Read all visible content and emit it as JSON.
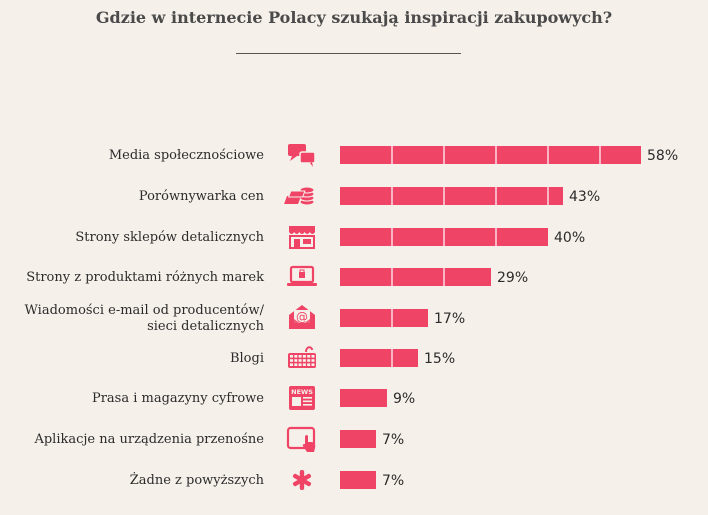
{
  "chart_data": {
    "type": "bar",
    "orientation": "horizontal",
    "title": "Gdzie w internecie Polacy szukają inspiracji zakupowych?",
    "categories": [
      [
        "Media społecznościowe"
      ],
      [
        "Porównywarka cen"
      ],
      [
        "Strony sklepów detalicznych"
      ],
      [
        "Strony z produktami różnych marek"
      ],
      [
        "Wiadomości e-mail od producentów/",
        "sieci detalicznych"
      ],
      [
        "Blogi"
      ],
      [
        "Prasa i magazyny cyfrowe"
      ],
      [
        "Aplikacje na urządzenia przenośne"
      ],
      [
        "Żadne z powyższych"
      ]
    ],
    "values": [
      58,
      43,
      40,
      29,
      17,
      15,
      9,
      7,
      7
    ],
    "value_labels": [
      "58%",
      "43%",
      "40%",
      "29%",
      "17%",
      "15%",
      "9%",
      "7%",
      "7%"
    ],
    "icons": [
      "chat-bubbles-icon",
      "coins-icon",
      "shop-icon",
      "laptop-bag-icon",
      "email-at-icon",
      "keyboard-icon",
      "newspaper-icon",
      "tablet-touch-icon",
      "asterisk-icon"
    ],
    "bar_color": "#ef4466",
    "icon_color": "#ef4466",
    "grid": "white vertical dividers inside bars",
    "legend": "none",
    "xlim": [
      0,
      58
    ]
  }
}
